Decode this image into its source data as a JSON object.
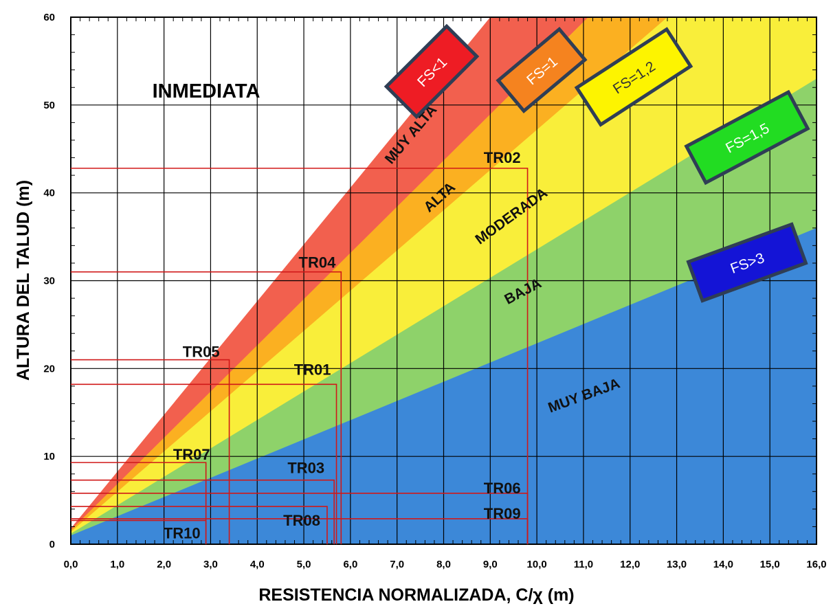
{
  "chart_data": {
    "type": "area",
    "title": "INMEDIATA",
    "xlabel": "RESISTENCIA NORMALIZADA, C/χ (m)",
    "ylabel": "ALTURA DEL TALUD (m)",
    "xlim": [
      0,
      16
    ],
    "ylim": [
      0,
      60
    ],
    "x_ticks": [
      "0,0",
      "1,0",
      "2,0",
      "3,0",
      "4,0",
      "5,0",
      "6,0",
      "7,0",
      "8,0",
      "9,0",
      "10,0",
      "11,0",
      "12,0",
      "13,0",
      "14,0",
      "15,0",
      "16,0"
    ],
    "y_ticks": [
      "0",
      "10",
      "20",
      "30",
      "40",
      "50",
      "60"
    ],
    "grid": true,
    "zones": [
      {
        "name": "MUY BAJA",
        "color": "#3c88d8",
        "upper_boundary": [
          [
            0,
            1
          ],
          [
            16,
            36
          ]
        ]
      },
      {
        "name": "BAJA",
        "color": "#8ed26a",
        "upper_boundary": [
          [
            0,
            1.2
          ],
          [
            16,
            53
          ]
        ]
      },
      {
        "name": "MODERADA",
        "color": "#f9ee3a",
        "upper_boundary": [
          [
            0,
            1.4
          ],
          [
            12.8,
            60
          ]
        ]
      },
      {
        "name": "ALTA",
        "color": "#fbb021",
        "upper_boundary": [
          [
            0,
            1.6
          ],
          [
            11.1,
            60
          ]
        ]
      },
      {
        "name": "MUY ALTA",
        "color": "#f2604e",
        "upper_boundary": [
          [
            0,
            1.8
          ],
          [
            9.0,
            60
          ]
        ]
      }
    ],
    "fs_boxes": [
      {
        "label": "FS<1",
        "fill": "#ee1c24",
        "text_color": "#ffffff"
      },
      {
        "label": "FS=1",
        "fill": "#f5831f",
        "text_color": "#ffffff"
      },
      {
        "label": "FS=1,2",
        "fill": "#fdf400",
        "text_color": "#333333"
      },
      {
        "label": "FS=1,5",
        "fill": "#22dc22",
        "text_color": "#ffffff"
      },
      {
        "label": "FS>3",
        "fill": "#1414d6",
        "text_color": "#ffffff"
      }
    ],
    "points": [
      {
        "name": "TR01",
        "x": 5.7,
        "y": 18.2
      },
      {
        "name": "TR02",
        "x": 9.8,
        "y": 42.8
      },
      {
        "name": "TR03",
        "x": 5.65,
        "y": 7.3
      },
      {
        "name": "TR04",
        "x": 5.8,
        "y": 31.0
      },
      {
        "name": "TR05",
        "x": 3.4,
        "y": 21.0
      },
      {
        "name": "TR06",
        "x": 9.8,
        "y": 5.8
      },
      {
        "name": "TR07",
        "x": 2.9,
        "y": 9.3
      },
      {
        "name": "TR08",
        "x": 5.5,
        "y": 4.3
      },
      {
        "name": "TR09",
        "x": 9.8,
        "y": 2.9
      },
      {
        "name": "TR10",
        "x": 2.9,
        "y": 2.7
      }
    ],
    "guide_line_color": "#d01818"
  }
}
